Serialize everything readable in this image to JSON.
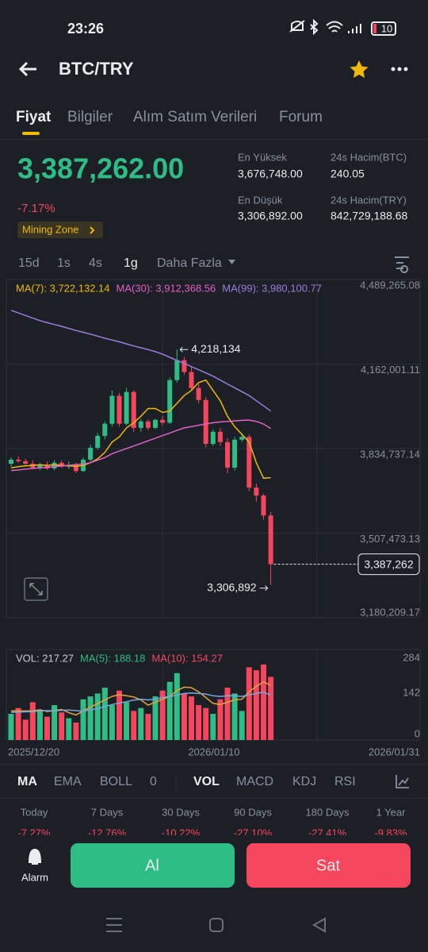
{
  "status_bar": {
    "time": "23:26",
    "battery": "10"
  },
  "header": {
    "title": "BTC/TRY"
  },
  "tabs": [
    "Fiyat",
    "Bilgiler",
    "Alım Satım Verileri",
    "Forum"
  ],
  "price": {
    "last": "3,387,262.00",
    "change": "-7.17%",
    "badge": "Mining Zone"
  },
  "stats": [
    {
      "label": "En Yüksek",
      "value": "3,676,748.00"
    },
    {
      "label": "24s Hacim(BTC)",
      "value": "240.05"
    },
    {
      "label": "En Düşük",
      "value": "3,306,892.00"
    },
    {
      "label": "24s Hacim(TRY)",
      "value": "842,729,188.68"
    }
  ],
  "intervals": [
    "15d",
    "1s",
    "4s",
    "1g",
    "Daha Fazla"
  ],
  "chart": {
    "type": "candlestick",
    "up_color": "#2ebd85",
    "down_color": "#f6465d",
    "ma_legend": [
      {
        "text": "MA(7): 3,722,132.14",
        "color": "#f0b90b"
      },
      {
        "text": "MA(30): 3,912,368.56",
        "color": "#e45fc8"
      },
      {
        "text": "MA(99): 3,980,100.77",
        "color": "#9b7de0"
      }
    ],
    "candles": [
      [
        3776000,
        3800000,
        3765000,
        3792000
      ],
      [
        3792000,
        3805000,
        3780000,
        3786000
      ],
      [
        3786000,
        3795000,
        3770000,
        3776000
      ],
      [
        3776000,
        3790000,
        3755000,
        3761000
      ],
      [
        3761000,
        3780000,
        3750000,
        3770000
      ],
      [
        3770000,
        3785000,
        3752000,
        3758000
      ],
      [
        3758000,
        3790000,
        3750000,
        3780000
      ],
      [
        3780000,
        3788000,
        3760000,
        3765000
      ],
      [
        3765000,
        3785000,
        3755000,
        3772000
      ],
      [
        3772000,
        3780000,
        3740000,
        3748000
      ],
      [
        3748000,
        3800000,
        3745000,
        3792000
      ],
      [
        3792000,
        3850000,
        3785000,
        3838000
      ],
      [
        3838000,
        3895000,
        3830000,
        3884000
      ],
      [
        3884000,
        3940000,
        3870000,
        3931000
      ],
      [
        3931000,
        4060000,
        3920000,
        4039000
      ],
      [
        4039000,
        4050000,
        3920000,
        3931000
      ],
      [
        3931000,
        4070000,
        3925000,
        4054000
      ],
      [
        4054000,
        4060000,
        3900000,
        3915000
      ],
      [
        3915000,
        3950000,
        3900000,
        3940000
      ],
      [
        3940000,
        3948000,
        3905000,
        3915000
      ],
      [
        3915000,
        3950000,
        3910000,
        3946000
      ],
      [
        3946000,
        3960000,
        3925000,
        3935000
      ],
      [
        3935000,
        4110000,
        3930000,
        4100000
      ],
      [
        4100000,
        4218134,
        4090000,
        4177000
      ],
      [
        4177000,
        4190000,
        4120000,
        4131000
      ],
      [
        4131000,
        4150000,
        4060000,
        4069000
      ],
      [
        4069000,
        4085000,
        4010000,
        4023000
      ],
      [
        4023000,
        4035000,
        3840000,
        3853000
      ],
      [
        3853000,
        3910000,
        3845000,
        3900000
      ],
      [
        3900000,
        3915000,
        3845000,
        3860000
      ],
      [
        3860000,
        3875000,
        3740000,
        3761000
      ],
      [
        3761000,
        3880000,
        3750000,
        3869000
      ],
      [
        3869000,
        3895000,
        3860000,
        3880000
      ],
      [
        3880000,
        3890000,
        3670000,
        3684000
      ],
      [
        3684000,
        3700000,
        3630000,
        3653000
      ],
      [
        3653000,
        3660000,
        3560000,
        3576000
      ],
      [
        3576000,
        3590000,
        3306892,
        3387262
      ]
    ],
    "ma_lines": [
      {
        "color": "#f0b90b",
        "values": [
          3760000,
          3765000,
          3768000,
          3770000,
          3772000,
          3770000,
          3772000,
          3770000,
          3768000,
          3766000,
          3770000,
          3780000,
          3795000,
          3820000,
          3860000,
          3880000,
          3915000,
          3935000,
          3960000,
          3990000,
          3990000,
          3975000,
          3980000,
          4010000,
          4040000,
          4060000,
          4090000,
          4100000,
          4060000,
          4020000,
          3960000,
          3920000,
          3890000,
          3860000,
          3780000,
          3720000,
          3722132.14
        ]
      },
      {
        "color": "#e45fc8",
        "values": [
          3750000,
          3752000,
          3755000,
          3758000,
          3760000,
          3762000,
          3765000,
          3768000,
          3770000,
          3773000,
          3775000,
          3780000,
          3790000,
          3800000,
          3815000,
          3825000,
          3835000,
          3845000,
          3855000,
          3865000,
          3875000,
          3885000,
          3895000,
          3905000,
          3915000,
          3920000,
          3925000,
          3930000,
          3935000,
          3938000,
          3940000,
          3942000,
          3944000,
          3945000,
          3940000,
          3930000,
          3912368.56
        ]
      },
      {
        "color": "#9b7de0",
        "values": [
          4370000,
          4360000,
          4350000,
          4340000,
          4330000,
          4322000,
          4315000,
          4308000,
          4300000,
          4292000,
          4285000,
          4278000,
          4270000,
          4262000,
          4255000,
          4248000,
          4240000,
          4232000,
          4225000,
          4218000,
          4210000,
          4200000,
          4188000,
          4176000,
          4165000,
          4152000,
          4140000,
          4128000,
          4115000,
          4100000,
          4085000,
          4070000,
          4055000,
          4040000,
          4020000,
          4000000,
          3980100.77
        ]
      }
    ],
    "ylim": [
      3180209.17,
      4489265.08
    ],
    "yticks": [
      {
        "value": 4489265.08,
        "label": "4,489,265.08"
      },
      {
        "value": 4162001.11,
        "label": "4,162,001.11"
      },
      {
        "value": 3834737.14,
        "label": "3,834,737.14"
      },
      {
        "value": 3507473.13,
        "label": "3,507,473.13"
      },
      {
        "value": 3180209.17,
        "label": "3,180,209.17"
      }
    ],
    "high_label": {
      "value": 4218134,
      "label": "4,218,134"
    },
    "low_label": {
      "value": 3306892,
      "label": "3,306,892"
    },
    "last_label": {
      "value": 3387262,
      "label": "3,387,262"
    },
    "dates": [
      "2025/12/20",
      "2026/01/10",
      "2026/01/31"
    ]
  },
  "volume": {
    "type": "bar",
    "legend": [
      {
        "text": "VOL: 217.27",
        "color": "#c8ccd2"
      },
      {
        "text": "MA(5): 188.18",
        "color": "#2ebd85"
      },
      {
        "text": "MA(10): 154.27",
        "color": "#f6465d"
      }
    ],
    "values": [
      90,
      110,
      70,
      130,
      100,
      80,
      120,
      95,
      75,
      60,
      140,
      150,
      160,
      180,
      120,
      170,
      130,
      100,
      110,
      90,
      150,
      170,
      200,
      230,
      160,
      150,
      120,
      110,
      90,
      140,
      180,
      160,
      100,
      250,
      240,
      260,
      217.27
    ],
    "ma_lines": [
      {
        "color": "#e8a33c",
        "values": [
          100,
          100,
          100,
          100,
          104,
          98,
          101,
          105,
          94,
          86,
          100,
          113,
          125,
          138,
          150,
          156,
          152,
          148,
          138,
          120,
          130,
          140,
          150,
          170,
          182,
          180,
          166,
          146,
          126,
          122,
          130,
          138,
          140,
          165,
          185,
          200,
          188.18
        ]
      },
      {
        "color": "#7aa7e0",
        "values": [
          95,
          96,
          97,
          98,
          100,
          101,
          100,
          102,
          103,
          101,
          99,
          104,
          108,
          115,
          122,
          127,
          132,
          137,
          140,
          138,
          140,
          146,
          150,
          154,
          160,
          162,
          160,
          158,
          152,
          150,
          152,
          152,
          150,
          155,
          160,
          165,
          154.27
        ]
      }
    ],
    "ylim": [
      0,
      284
    ],
    "yticks": [
      284,
      142,
      0
    ]
  },
  "indicators": [
    "MA",
    "EMA",
    "BOLL",
    "0",
    "VOL",
    "MACD",
    "KDJ",
    "RSI"
  ],
  "performance": [
    {
      "label": "Today",
      "value": "-7.27%"
    },
    {
      "label": "7 Days",
      "value": "-12.76%"
    },
    {
      "label": "30 Days",
      "value": "-10.22%"
    },
    {
      "label": "90 Days",
      "value": "-27.10%"
    },
    {
      "label": "180 Days",
      "value": "-27.41%"
    },
    {
      "label": "1 Year",
      "value": "-9.83%"
    }
  ],
  "actions": {
    "alarm": "Alarm",
    "buy": "Al",
    "sell": "Sat"
  }
}
